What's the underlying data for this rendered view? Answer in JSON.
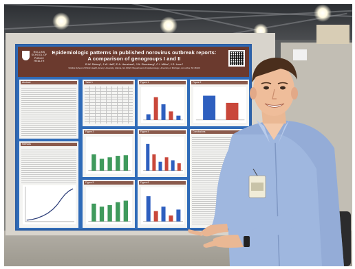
{
  "poster": {
    "title_line1": "Epidemiologic patterns in published norovirus outbreak reports:",
    "title_line2": "A comparison of genogroups I and II",
    "authors": "B.W. Dickey¹, J.W. Hall², E.A. Henshaw¹, J.N. Eisenberg¹, C.I. Miller¹, J.S. Leon¹",
    "affiliation": "¹Rollins School of Public Health, Emory University, Atlanta, GA 30322  ²Department of Epidemiology, University of Michigan, Ann Arbor, MI 48109",
    "logo_text": "ROLLINS SCHOOL OF PUBLIC HEALTH",
    "sections": {
      "abstract": "Abstract",
      "methods": "Methods",
      "table1": "Table 1",
      "figure1": "Figure 1",
      "figure2": "Figure 2",
      "figure3": "Figure 3",
      "figure4": "Figure 4",
      "figure5": "Figure 5",
      "figure6": "Figure 6",
      "conclusions": "Conclusions"
    }
  },
  "colors": {
    "poster_border": "#2f6bb8",
    "header_band": "#6b3a2e",
    "section_header": "#8a5a4c",
    "bar_green": "#3f9a5c",
    "bar_red": "#c9473a",
    "bar_blue": "#2e5fbf",
    "shirt": "#9db6df"
  },
  "figures": {
    "figure1_bars": [
      0.2,
      0.8,
      0.55,
      0.3,
      0.15
    ],
    "figure2_bars": [
      0.85,
      0.6
    ],
    "figure3_bars": [
      0.55,
      0.4,
      0.45,
      0.5,
      0.52
    ],
    "figure4_bars": [
      0.9,
      0.55,
      0.3,
      0.45,
      0.35,
      0.25
    ],
    "figure5_bars": [
      0.6,
      0.5,
      0.55,
      0.65,
      0.7
    ],
    "figure6_bars": [
      0.85,
      0.35,
      0.5,
      0.2,
      0.4
    ]
  }
}
